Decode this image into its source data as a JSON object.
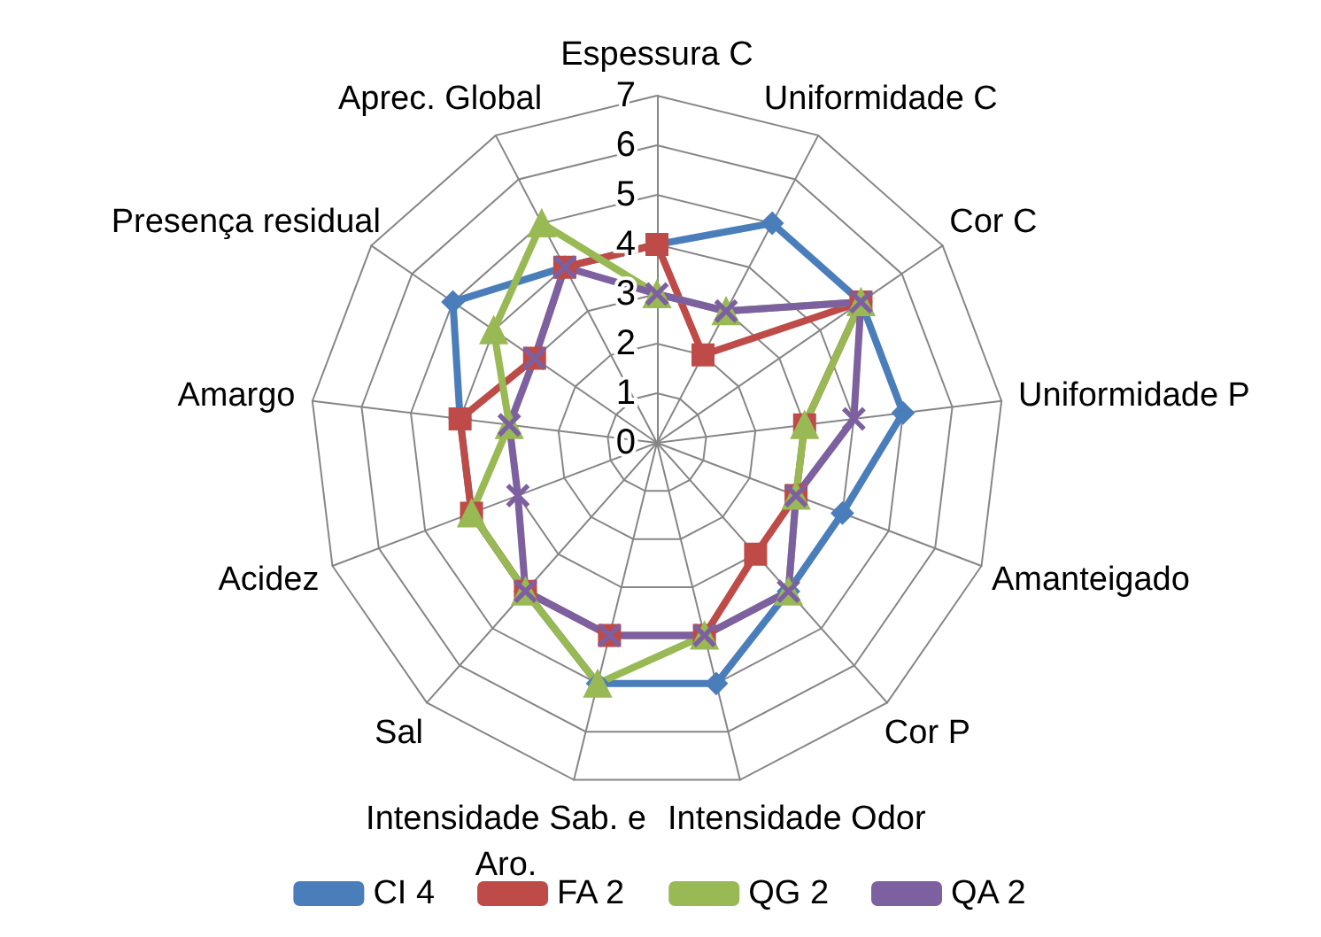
{
  "chart_data": {
    "type": "radar",
    "categories": [
      "Espessura C",
      "Uniformidade C",
      "Cor C",
      "Uniformidade P",
      "Amanteigado",
      "Cor P",
      "Intensidade Odor",
      "Intensidade Sab. e Aro.",
      "Sal",
      "Acidez",
      "Amargo",
      "Presença residual",
      "Aprec. Global"
    ],
    "ylim": [
      0,
      7
    ],
    "yticks": [
      0,
      1,
      2,
      3,
      4,
      5,
      6,
      7
    ],
    "grid": true,
    "legend": "bottom",
    "series": [
      {
        "name": "CI 4",
        "color": "#4a7ebb",
        "marker": "diamond",
        "values": [
          4,
          5,
          5,
          5,
          4,
          4,
          5,
          5,
          4,
          4,
          4,
          5,
          4
        ]
      },
      {
        "name": "FA 2",
        "color": "#be4b48",
        "marker": "square",
        "values": [
          4,
          2,
          5,
          3,
          3,
          3,
          4,
          4,
          4,
          4,
          4,
          3,
          4
        ]
      },
      {
        "name": "QG 2",
        "color": "#98b954",
        "marker": "triangle",
        "values": [
          3,
          3,
          5,
          3,
          3,
          4,
          4,
          5,
          4,
          4,
          3,
          4,
          5
        ]
      },
      {
        "name": "QA 2",
        "color": "#7d60a0",
        "marker": "cross",
        "values": [
          3,
          3,
          5,
          4,
          3,
          4,
          4,
          4,
          4,
          3,
          3,
          3,
          4
        ]
      }
    ]
  }
}
